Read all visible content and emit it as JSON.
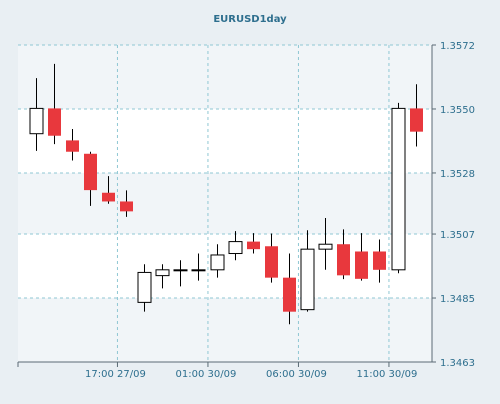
{
  "chart_data": {
    "type": "candlestick",
    "title": "EURUSD1day",
    "xlabel": "",
    "ylabel": "",
    "ylim": [
      1.3463,
      1.3572
    ],
    "y_ticks": [
      "1.3463",
      "1.3485",
      "1.3507",
      "1.3528",
      "1.3550",
      "1.3572"
    ],
    "x_ticks": [
      "17:00 27/09",
      "01:00 30/09",
      "06:00 30/09",
      "11:00 30/09"
    ],
    "grid": true,
    "colors": {
      "background": "#e9eff3",
      "plot_band_light": "#ffffff",
      "plot_band_dark": "#f1f5f8",
      "grid": "#8fc7d3",
      "axis": "#5a6a74",
      "tick_label": "#2e6f8e",
      "title": "#2e6f8e",
      "bull_fill": "#ffffff",
      "bear_fill": "#e8383d",
      "outline": "#000000"
    },
    "candles": [
      {
        "o": 1.35415,
        "h": 1.35606,
        "l": 1.35356,
        "c": 1.35502
      },
      {
        "o": 1.35502,
        "h": 1.35655,
        "l": 1.35379,
        "c": 1.35408
      },
      {
        "o": 1.35392,
        "h": 1.35431,
        "l": 1.35323,
        "c": 1.35353
      },
      {
        "o": 1.35346,
        "h": 1.35353,
        "l": 1.35167,
        "c": 1.35221
      },
      {
        "o": 1.35212,
        "h": 1.35269,
        "l": 1.35174,
        "c": 1.35182
      },
      {
        "o": 1.35182,
        "h": 1.3522,
        "l": 1.35129,
        "c": 1.35148
      },
      {
        "o": 1.34835,
        "h": 1.34966,
        "l": 1.34803,
        "c": 1.34938
      },
      {
        "o": 1.34927,
        "h": 1.34966,
        "l": 1.34883,
        "c": 1.34947
      },
      {
        "o": 1.34947,
        "h": 1.3498,
        "l": 1.3489,
        "c": 1.34947
      },
      {
        "o": 1.34947,
        "h": 1.35003,
        "l": 1.3491,
        "c": 1.34947
      },
      {
        "o": 1.34947,
        "h": 1.35035,
        "l": 1.3492,
        "c": 1.34998
      },
      {
        "o": 1.35003,
        "h": 1.3508,
        "l": 1.3498,
        "c": 1.35044
      },
      {
        "o": 1.35044,
        "h": 1.35073,
        "l": 1.35003,
        "c": 1.35018
      },
      {
        "o": 1.35028,
        "h": 1.35072,
        "l": 1.34903,
        "c": 1.3492
      },
      {
        "o": 1.3492,
        "h": 1.35003,
        "l": 1.3476,
        "c": 1.34803
      },
      {
        "o": 1.3481,
        "h": 1.35083,
        "l": 1.34803,
        "c": 1.35018
      },
      {
        "o": 1.35018,
        "h": 1.35125,
        "l": 1.34947,
        "c": 1.35035
      },
      {
        "o": 1.35035,
        "h": 1.35086,
        "l": 1.34915,
        "c": 1.34928
      },
      {
        "o": 1.3501,
        "h": 1.35073,
        "l": 1.3491,
        "c": 1.34916
      },
      {
        "o": 1.3501,
        "h": 1.35051,
        "l": 1.34903,
        "c": 1.34947
      },
      {
        "o": 1.34947,
        "h": 1.35521,
        "l": 1.34935,
        "c": 1.35502
      },
      {
        "o": 1.35502,
        "h": 1.35585,
        "l": 1.35371,
        "c": 1.35422
      }
    ]
  }
}
